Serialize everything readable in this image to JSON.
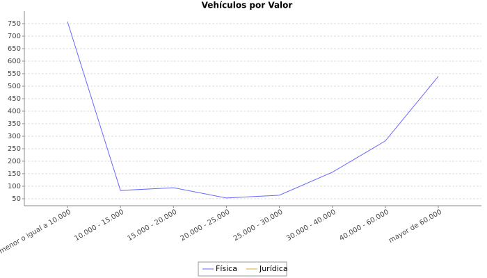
{
  "chart_data": {
    "type": "line",
    "title": "Vehículos por Valor",
    "categories": [
      "menor o igual a 10.000",
      "10.000 - 15.000",
      "15.000 - 20.000",
      "20.000 - 25.000",
      "25.000 - 30.000",
      "30.000 - 40.000",
      "40.000 - 60.000",
      "mayor de 60.000"
    ],
    "series": [
      {
        "name": "Física",
        "color": "#6666ff",
        "values": [
          758,
          83,
          94,
          53,
          64,
          156,
          281,
          539
        ]
      },
      {
        "name": "Jurídica",
        "color": "#e6a23c",
        "values": [
          null,
          null,
          null,
          null,
          null,
          null,
          null,
          null
        ]
      }
    ],
    "ylim": [
      22,
      800
    ],
    "yticks": [
      50,
      100,
      150,
      200,
      250,
      300,
      350,
      400,
      450,
      500,
      550,
      600,
      650,
      700,
      750
    ],
    "grid": true,
    "legend": "bottom"
  }
}
